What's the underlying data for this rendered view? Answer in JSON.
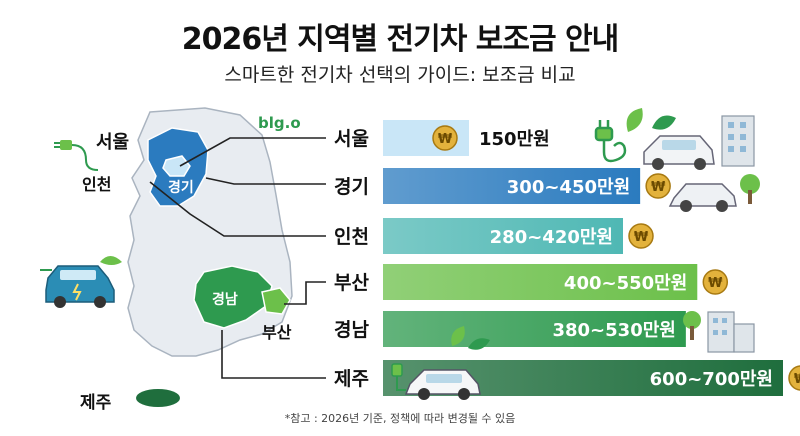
{
  "title": "2026년 지역별 전기차 보조금 안내",
  "subtitle": "스마트한 전기차 선택의 가이드: 보조금 비교",
  "logo_text": "blg.o",
  "footnote": "*참고 : 2026년 기준, 정책에 따라 변경될 수 있음",
  "map_labels": {
    "seoul": "서울",
    "incheon": "인천",
    "gyeonggi": "경기",
    "gyeongnam": "경남",
    "busan": "부산",
    "jeju": "제주"
  },
  "colors": {
    "seoul": "#c9e6f7",
    "gyeonggi": "#2b7bbf",
    "incheon": "#4fb8b4",
    "busan": "#6cc04a",
    "gyeongnam": "#2e9a4f",
    "jeju": "#1f6e3d",
    "map_land": "#e8ecf1",
    "map_stroke": "#aab4c0",
    "coin": "#e3b23c"
  },
  "chart_data": {
    "type": "bar",
    "orientation": "horizontal",
    "unit": "만원",
    "categories": [
      "서울",
      "경기",
      "인천",
      "부산",
      "경남",
      "제주"
    ],
    "ranges": [
      [
        150,
        150
      ],
      [
        300,
        450
      ],
      [
        280,
        420
      ],
      [
        400,
        550
      ],
      [
        380,
        530
      ],
      [
        600,
        700
      ]
    ],
    "value_labels": [
      "150만원",
      "300~450만원",
      "280~420만원",
      "400~550만원",
      "380~530만원",
      "600~700만원"
    ]
  }
}
